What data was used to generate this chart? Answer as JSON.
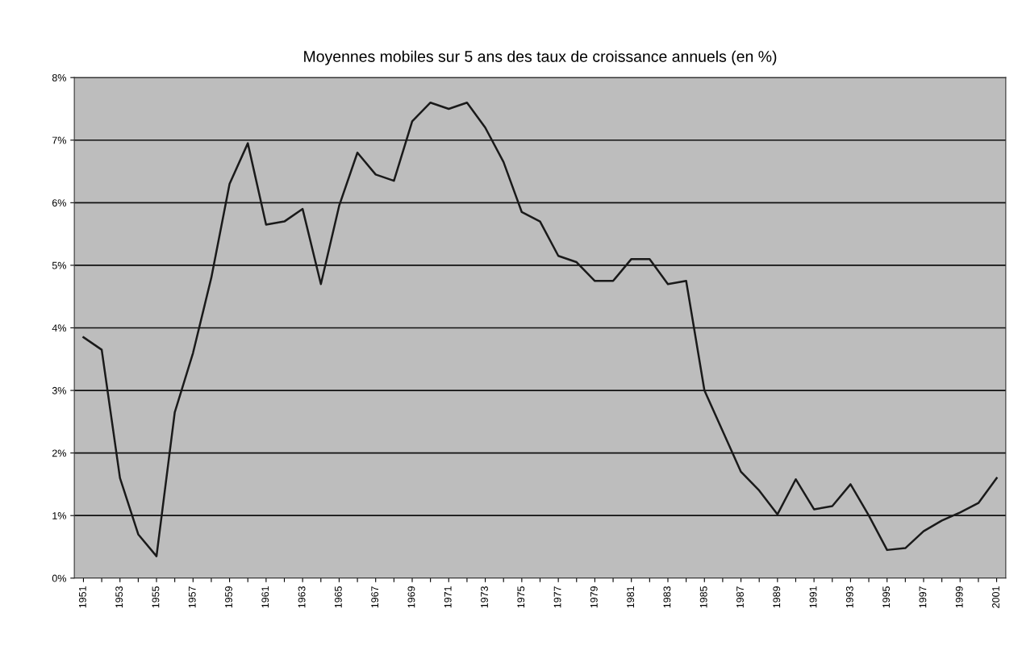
{
  "chart_data": {
    "type": "line",
    "title": "Moyennes mobiles sur 5 ans des taux de croissance annuels (en %)",
    "categories": [
      "1951",
      null,
      "1953",
      null,
      "1955",
      null,
      "1957",
      null,
      "1959",
      null,
      "1961",
      null,
      "1963",
      null,
      "1965",
      null,
      "1967",
      null,
      "1969",
      null,
      "1971",
      null,
      "1973",
      null,
      "1975",
      null,
      "1977",
      null,
      "1979",
      null,
      "1981",
      null,
      "1983",
      null,
      "1985",
      null,
      "1987",
      null,
      "1989",
      null,
      "1991",
      null,
      "1993",
      null,
      "1995",
      null,
      "1997",
      null,
      "1999",
      null,
      "2001"
    ],
    "series": [
      {
        "color": "#1a1a1a",
        "values": [
          3.85,
          3.65,
          1.6,
          0.7,
          0.35,
          2.65,
          3.6,
          4.8,
          6.3,
          6.95,
          5.65,
          5.7,
          5.9,
          4.7,
          5.95,
          6.8,
          6.45,
          6.35,
          7.3,
          7.6,
          7.5,
          7.6,
          7.2,
          6.65,
          5.85,
          5.7,
          5.15,
          5.05,
          4.75,
          4.75,
          5.1,
          5.1,
          4.7,
          4.75,
          3.0,
          2.35,
          1.7,
          1.4,
          1.02,
          1.58,
          1.1,
          1.15,
          1.5,
          1.0,
          0.45,
          0.48,
          0.75,
          0.92,
          1.05,
          1.2,
          1.6
        ]
      }
    ],
    "ylim": [
      0,
      8
    ],
    "yticks": [
      {
        "value": 0,
        "label": "0%"
      },
      {
        "value": 1,
        "label": "1%"
      },
      {
        "value": 2,
        "label": "2%"
      },
      {
        "value": 3,
        "label": "3%"
      },
      {
        "value": 4,
        "label": "4%"
      },
      {
        "value": 5,
        "label": "5%"
      },
      {
        "value": 6,
        "label": "6%"
      },
      {
        "value": 7,
        "label": "7%"
      },
      {
        "value": 8,
        "label": "8%"
      }
    ],
    "grid": "y",
    "marker": "none",
    "line_style": "solid"
  }
}
